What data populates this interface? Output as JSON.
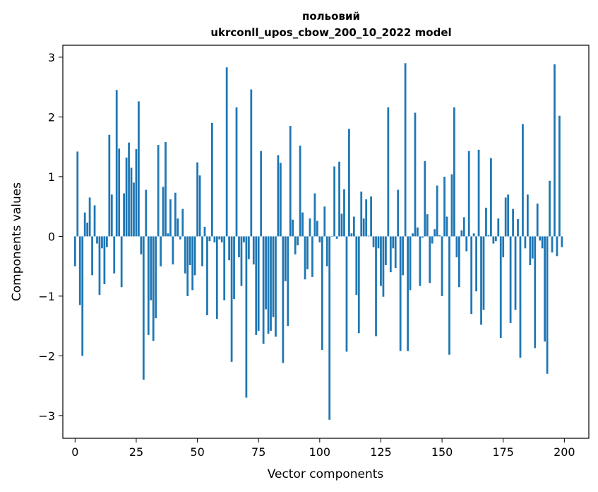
{
  "chart_data": {
    "type": "bar",
    "title_line1": "польовий",
    "title_line2": "ukrconll_upos_cbow_200_10_2022 model",
    "xlabel": "Vector components",
    "ylabel": "Components values",
    "xlim": [
      -5,
      210
    ],
    "ylim": [
      -3.38,
      3.2
    ],
    "xticks": [
      0,
      25,
      50,
      75,
      100,
      125,
      150,
      175,
      200
    ],
    "xtick_labels": [
      "0",
      "25",
      "50",
      "75",
      "100",
      "125",
      "150",
      "175",
      "200"
    ],
    "yticks": [
      -3,
      -2,
      -1,
      0,
      1,
      2,
      3
    ],
    "ytick_labels": [
      "−3",
      "−2",
      "−1",
      "0",
      "1",
      "2",
      "3"
    ],
    "grid": false,
    "color": "#1f77b4",
    "x_start": 0,
    "values": [
      -0.5,
      1.42,
      -1.15,
      -2.0,
      0.4,
      0.23,
      0.65,
      -0.65,
      0.52,
      -0.12,
      -0.98,
      -0.2,
      -0.8,
      -0.18,
      1.7,
      0.7,
      -0.62,
      2.45,
      1.47,
      -0.85,
      0.72,
      1.32,
      1.57,
      1.15,
      0.9,
      1.46,
      2.26,
      -0.3,
      -2.4,
      0.78,
      -1.65,
      -1.07,
      -1.75,
      -1.37,
      1.53,
      -0.5,
      0.83,
      1.58,
      0.05,
      0.62,
      -0.47,
      0.73,
      0.3,
      -0.05,
      0.46,
      -0.62,
      -1.0,
      -0.48,
      -0.9,
      -0.65,
      1.24,
      1.02,
      -0.5,
      0.16,
      -1.32,
      -0.08,
      1.9,
      -0.1,
      -1.38,
      -0.05,
      -0.1,
      -1.07,
      2.83,
      -0.4,
      -2.1,
      -1.05,
      2.16,
      -0.35,
      -0.83,
      -0.1,
      -2.7,
      -0.38,
      2.46,
      -0.47,
      -1.65,
      -1.58,
      1.43,
      -1.8,
      -1.22,
      -1.63,
      -1.58,
      -1.35,
      -1.68,
      1.36,
      1.23,
      -2.12,
      -0.75,
      -1.5,
      1.85,
      0.28,
      -0.3,
      -0.15,
      1.52,
      0.4,
      -0.72,
      -0.55,
      0.3,
      -0.68,
      0.72,
      0.26,
      -0.1,
      -1.9,
      0.5,
      -0.5,
      -3.07,
      0.0,
      1.17,
      -0.04,
      1.25,
      0.38,
      0.79,
      -1.93,
      1.8,
      0.05,
      0.33,
      -0.98,
      -1.62,
      0.75,
      0.3,
      0.62,
      0.01,
      0.67,
      -0.18,
      -1.67,
      -0.2,
      -0.83,
      -1.01,
      -0.48,
      2.16,
      -0.6,
      -0.2,
      -0.53,
      0.78,
      -1.92,
      -0.65,
      2.9,
      -1.92,
      -0.9,
      0.05,
      2.07,
      0.15,
      -0.83,
      -0.02,
      1.26,
      0.37,
      -0.78,
      -0.12,
      0.12,
      0.85,
      0.02,
      -1.0,
      1.0,
      0.33,
      -1.98,
      1.04,
      2.16,
      -0.35,
      -0.85,
      0.1,
      0.32,
      -0.25,
      1.43,
      -1.3,
      0.05,
      -0.92,
      1.45,
      -1.48,
      -1.23,
      0.48,
      0.02,
      1.31,
      -0.12,
      -0.08,
      0.3,
      -1.7,
      -0.35,
      0.65,
      0.7,
      -1.45,
      0.46,
      -1.23,
      0.29,
      -2.03,
      1.88,
      -0.2,
      0.7,
      -0.48,
      -0.37,
      -1.87,
      0.55,
      -0.07,
      -0.2,
      -1.76,
      -2.3,
      0.93,
      -0.27,
      2.88,
      -0.33,
      2.02,
      -0.18
    ]
  }
}
